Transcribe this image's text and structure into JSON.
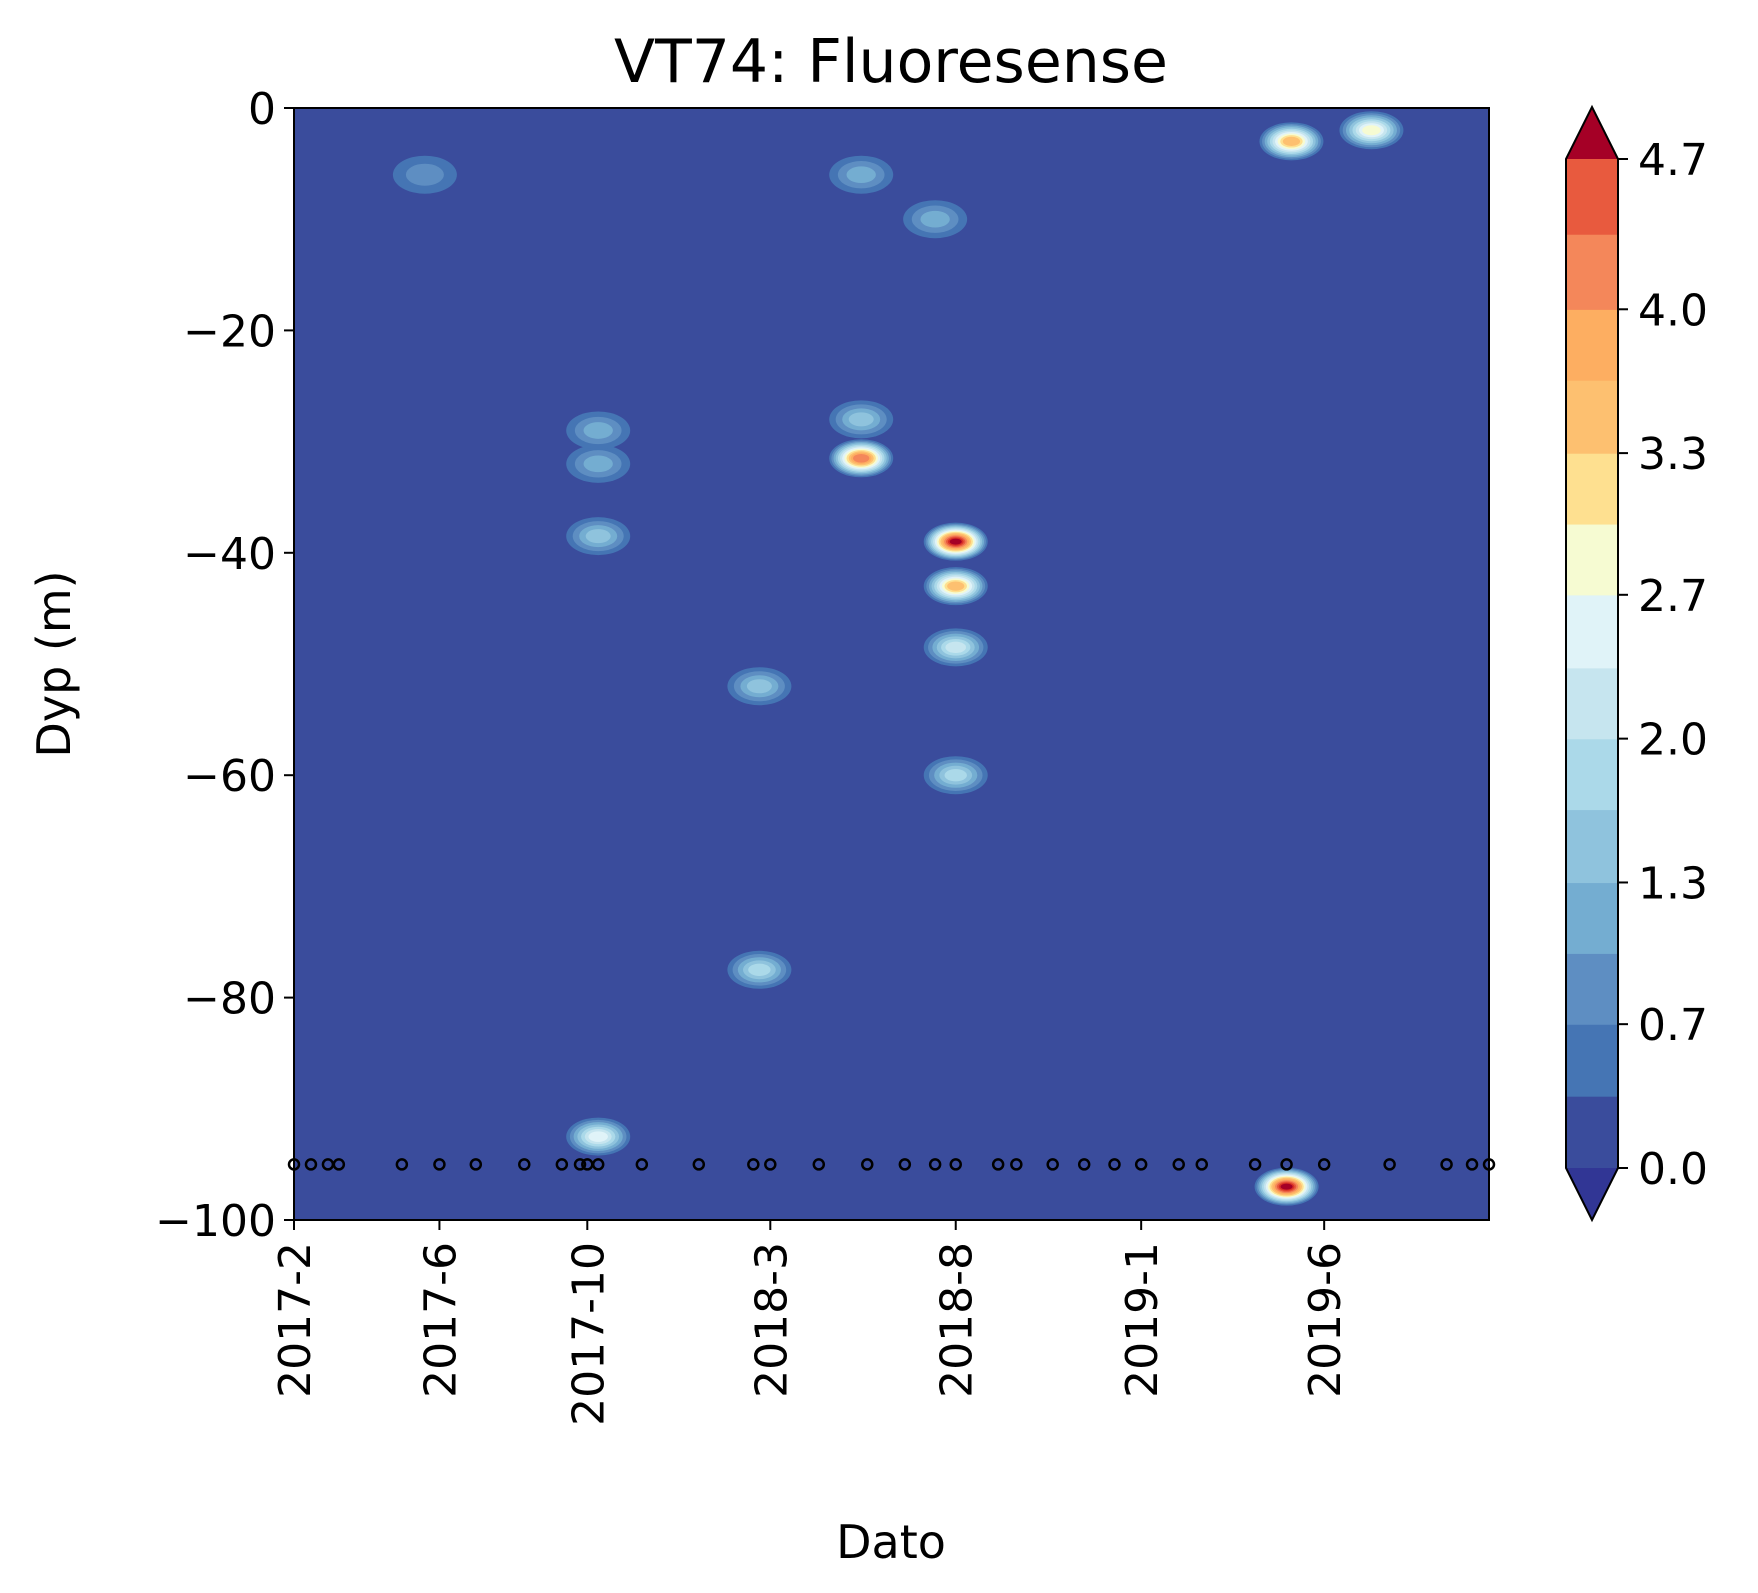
{
  "chart_data": {
    "type": "heatmap",
    "subtype": "filled-contour",
    "title": "VT74: Fluoresense",
    "xlabel": "Dato",
    "ylabel": "Dyp (m)",
    "xlim": [
      "2017-02-01",
      "2019-10-15"
    ],
    "ylim": [
      -100,
      0
    ],
    "x_ticks": [
      {
        "label": "2017-2",
        "date": "2017-02-01"
      },
      {
        "label": "2017-6",
        "date": "2017-06-01"
      },
      {
        "label": "2017-10",
        "date": "2017-10-01"
      },
      {
        "label": "2018-3",
        "date": "2018-03-01"
      },
      {
        "label": "2018-8",
        "date": "2018-08-01"
      },
      {
        "label": "2019-1",
        "date": "2019-01-01"
      },
      {
        "label": "2019-6",
        "date": "2019-06-01"
      }
    ],
    "y_ticks": [
      0,
      -20,
      -40,
      -60,
      -80,
      -100
    ],
    "grid": false,
    "colorbar": {
      "label": "",
      "range": [
        0.0,
        4.7
      ],
      "extend": "both",
      "tick_labels": [
        "0.0",
        "0.7",
        "1.3",
        "2.0",
        "2.7",
        "3.3",
        "4.0",
        "4.7"
      ],
      "tick_values": [
        0.0,
        0.67,
        1.33,
        2.0,
        2.67,
        3.33,
        4.0,
        4.7
      ],
      "levels": [
        0.0,
        0.335,
        0.67,
        1.0,
        1.33,
        1.67,
        2.0,
        2.33,
        2.67,
        3.0,
        3.33,
        3.67,
        4.0,
        4.35,
        4.7
      ],
      "colors": [
        "#3a4c9c",
        "#4575b4",
        "#5e8ec2",
        "#74add1",
        "#8fc3dd",
        "#abd9e9",
        "#c6e5ef",
        "#e0f3f8",
        "#f6fbd2",
        "#fee090",
        "#fdc070",
        "#fdae61",
        "#f4875a",
        "#e85a3e",
        "#d73027"
      ],
      "under_color": "#313695",
      "over_color": "#a50026"
    },
    "background_value": 0.0,
    "sample_depth": -95,
    "sample_dates": [
      "2017-02-01",
      "2017-02-15",
      "2017-03-01",
      "2017-03-10",
      "2017-05-01",
      "2017-06-01",
      "2017-07-01",
      "2017-08-10",
      "2017-09-10",
      "2017-09-25",
      "2017-10-01",
      "2017-10-10",
      "2017-11-15",
      "2018-01-01",
      "2018-02-15",
      "2018-03-01",
      "2018-04-10",
      "2018-05-20",
      "2018-06-20",
      "2018-07-15",
      "2018-08-01",
      "2018-09-05",
      "2018-09-20",
      "2018-10-20",
      "2018-11-15",
      "2018-12-10",
      "2019-01-01",
      "2019-02-01",
      "2019-02-20",
      "2019-04-05",
      "2019-05-01",
      "2019-06-01",
      "2019-07-25",
      "2019-09-10",
      "2019-10-01",
      "2019-10-15"
    ],
    "features": [
      {
        "date": "2019-05-05",
        "depth": -3,
        "value": 3.4
      },
      {
        "date": "2019-07-10",
        "depth": -2,
        "value": 2.7
      },
      {
        "date": "2019-05-01",
        "depth": -97,
        "value": 4.7
      },
      {
        "date": "2018-08-01",
        "depth": -39,
        "value": 4.7
      },
      {
        "date": "2018-08-01",
        "depth": -43,
        "value": 3.6
      },
      {
        "date": "2018-08-01",
        "depth": -48.5,
        "value": 2.0
      },
      {
        "date": "2018-08-01",
        "depth": -60,
        "value": 1.7
      },
      {
        "date": "2018-05-15",
        "depth": -31.5,
        "value": 4.2
      },
      {
        "date": "2018-05-15",
        "depth": -28,
        "value": 1.5
      },
      {
        "date": "2018-05-15",
        "depth": -6,
        "value": 1.0
      },
      {
        "date": "2017-10-10",
        "depth": -92.5,
        "value": 2.6
      },
      {
        "date": "2017-10-10",
        "depth": -38.5,
        "value": 1.5
      },
      {
        "date": "2017-10-10",
        "depth": -32,
        "value": 1.2
      },
      {
        "date": "2017-10-10",
        "depth": -29,
        "value": 1.0
      },
      {
        "date": "2018-02-20",
        "depth": -77.5,
        "value": 1.9
      },
      {
        "date": "2018-02-20",
        "depth": -52,
        "value": 1.5
      },
      {
        "date": "2018-07-15",
        "depth": -10,
        "value": 1.0
      },
      {
        "date": "2017-05-20",
        "depth": -6,
        "value": 0.9
      }
    ]
  }
}
